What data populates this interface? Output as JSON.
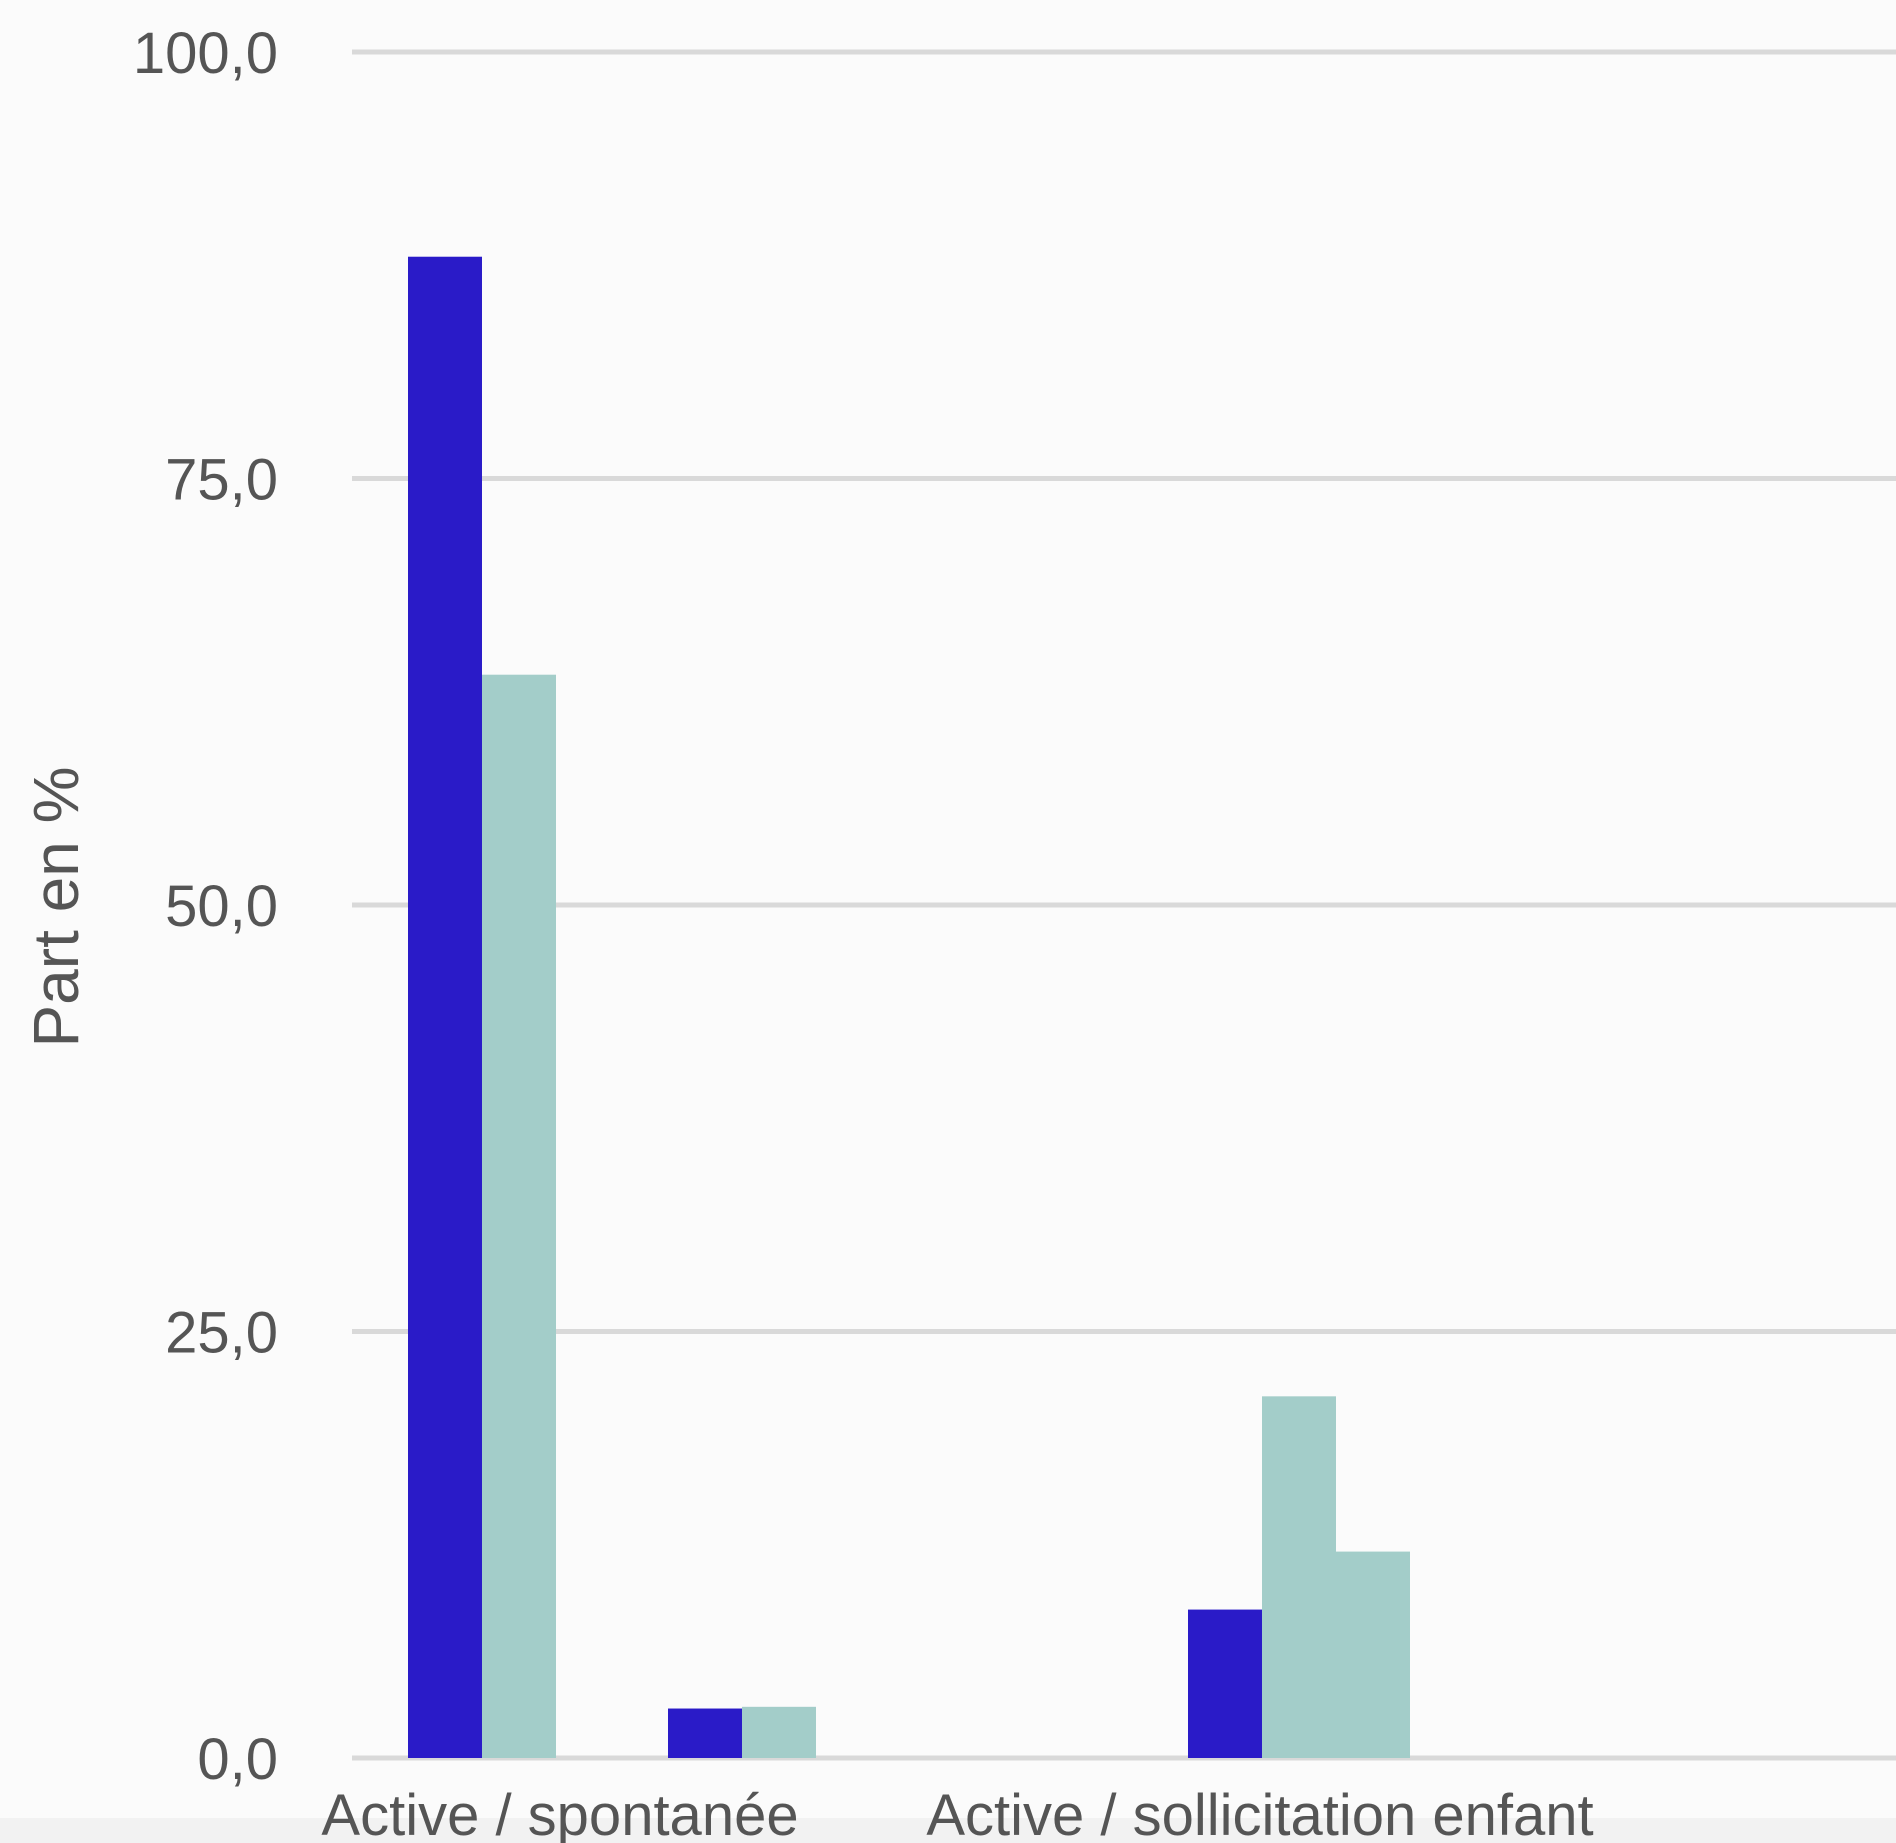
{
  "chart_data": {
    "type": "bar",
    "ylabel": "Part en %",
    "xlabel": "",
    "ylim": [
      0,
      100
    ],
    "yticks": [
      0,
      25,
      50,
      75,
      100
    ],
    "ytick_labels": [
      "0,0",
      "25,0",
      "50,0",
      "75,0",
      "100,0"
    ],
    "grid": true,
    "categories": [
      "Active / spontanée",
      "",
      "Active / sollicitation enfant",
      ""
    ],
    "series": [
      {
        "color": "#2a1bc8",
        "values": [
          88.0,
          2.9,
          0,
          8.7
        ]
      },
      {
        "color": "#a3cdc9",
        "values": [
          63.5,
          3.0,
          0,
          21.2
        ]
      },
      {
        "color": "#a3cdc9",
        "values": [
          0,
          0,
          0,
          12.1
        ]
      }
    ]
  }
}
